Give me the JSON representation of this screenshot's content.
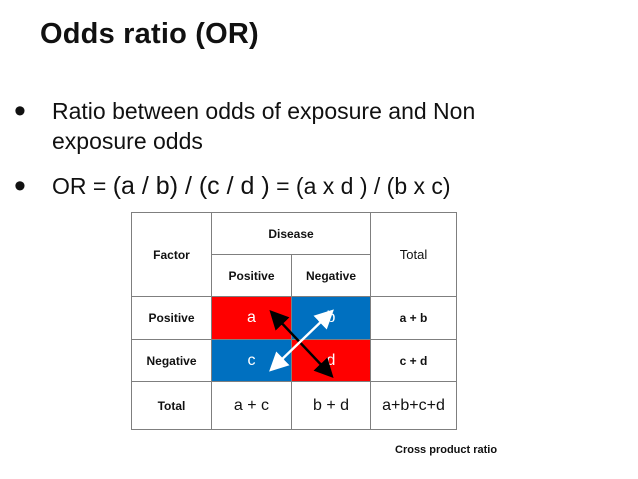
{
  "title": "Odds ratio (OR)",
  "bullets": [
    {
      "text": "Ratio between odds of exposure and  Non",
      "text2": "exposure odds"
    },
    {
      "prefix": "OR  =  ",
      "formula1": "(a / b) / (c / d )",
      "formula2": "  = (a x d ) / (b x c)"
    }
  ],
  "table": {
    "factor_header": "Factor",
    "disease_header": "Disease",
    "total_header": "Total",
    "positive_col": "Positive",
    "negative_col": "Negative",
    "rows": [
      {
        "label": "Positive",
        "a": "a",
        "b": "b",
        "total": "a + b"
      },
      {
        "label": "Negative",
        "a": "c",
        "b": "d",
        "total": "c + d"
      },
      {
        "label": "Total",
        "a": "a + c",
        "b": "b + d",
        "total": "a+b+c+d"
      }
    ]
  },
  "caption": "Cross product ratio",
  "colors": {
    "red_cell": "#ff0000",
    "blue_cell": "#0070c0",
    "arrow_black": "#000000",
    "arrow_white": "#ffffff"
  }
}
